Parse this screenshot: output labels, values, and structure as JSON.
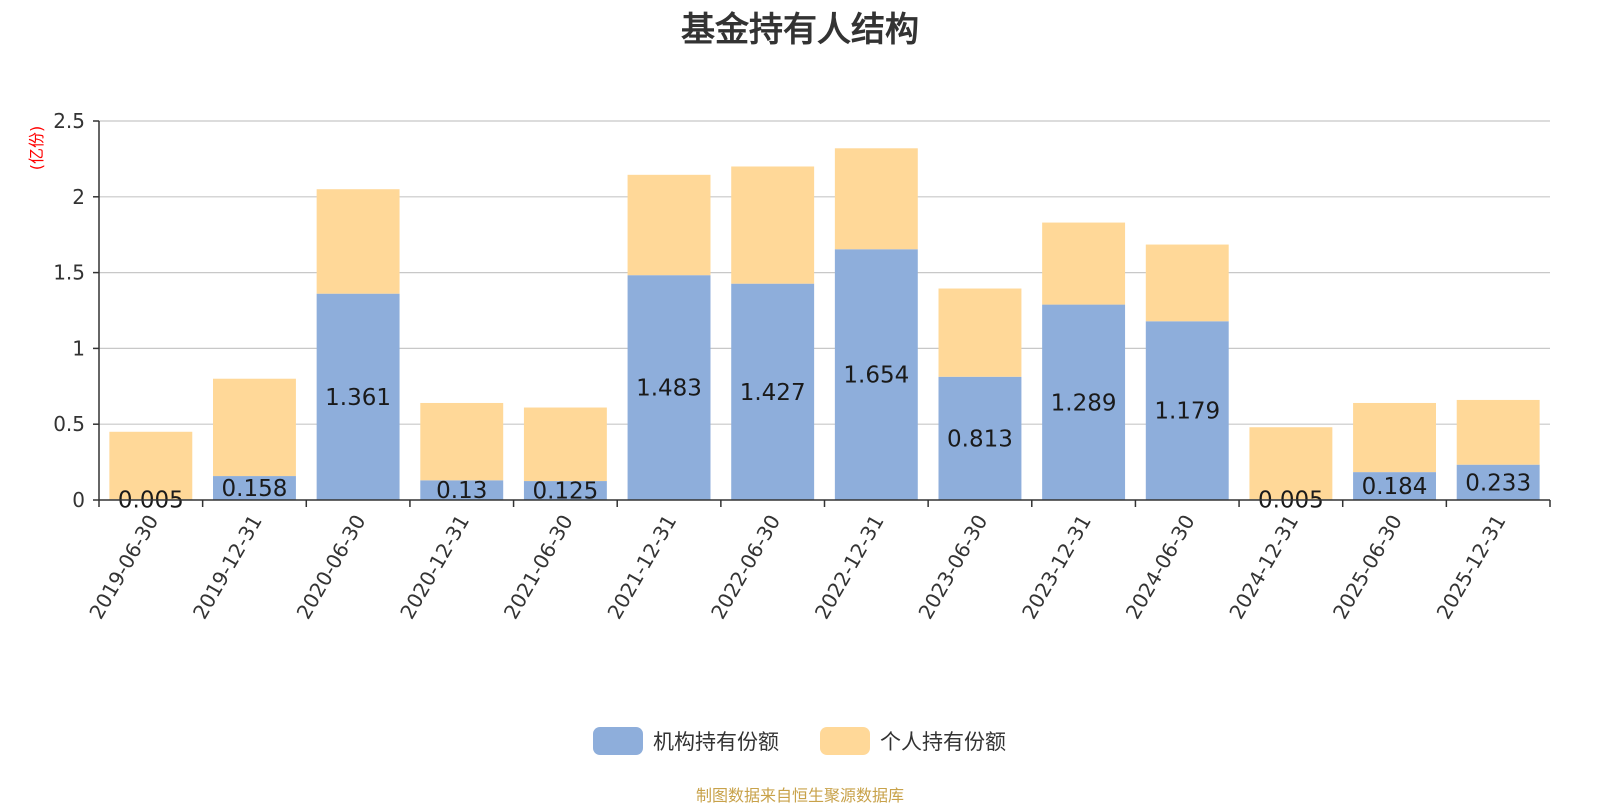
{
  "chart_data": {
    "type": "bar",
    "stacked": true,
    "title": "基金持有人结构",
    "unit_label": "(亿份)",
    "categories": [
      "2019-06-30",
      "2019-12-31",
      "2020-06-30",
      "2020-12-31",
      "2021-06-30",
      "2021-12-31",
      "2022-06-30",
      "2022-12-31",
      "2023-06-30",
      "2023-12-31",
      "2024-06-30",
      "2024-12-31",
      "2025-06-30",
      "2025-12-31"
    ],
    "series": [
      {
        "name": "机构持有份额",
        "color": "#8eaedb",
        "values": [
          0.005,
          0.158,
          1.361,
          0.13,
          0.125,
          1.483,
          1.427,
          1.654,
          0.813,
          1.289,
          1.179,
          0.005,
          0.184,
          0.233
        ],
        "labels": [
          "0.005",
          "0.158",
          "1.361",
          "0.13",
          "0.125",
          "1.483",
          "1.427",
          "1.654",
          "0.813",
          "1.289",
          "1.179",
          "0.005",
          "0.184",
          "0.233"
        ]
      },
      {
        "name": "个人持有份额",
        "color": "#ffd898",
        "values": [
          0.445,
          0.642,
          0.689,
          0.51,
          0.485,
          0.662,
          0.773,
          0.666,
          0.582,
          0.541,
          0.506,
          0.475,
          0.456,
          0.427
        ]
      }
    ],
    "ylim": [
      0,
      2.5
    ],
    "yticks": [
      "0",
      "0.5",
      "1",
      "1.5",
      "2",
      "2.5"
    ],
    "grid": true,
    "legend_position": "bottom-center"
  },
  "source_note": "制图数据来自恒生聚源数据库"
}
